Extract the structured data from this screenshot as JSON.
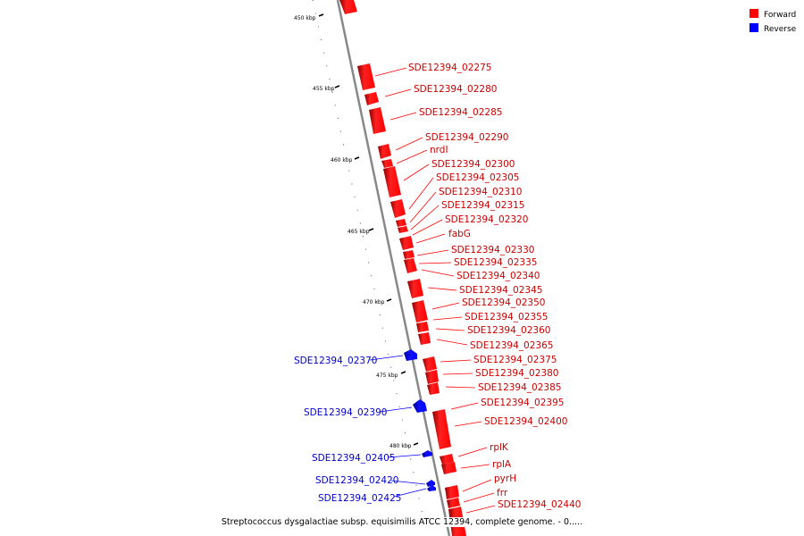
{
  "legend": {
    "forward": "Forward",
    "reverse": "Reverse"
  },
  "colors": {
    "forward": "#ff0000",
    "reverse": "#0000ff",
    "backbone": "#888888"
  },
  "caption": "Streptococcus dysgalactiae subsp. equisimilis ATCC 12394, complete genome. - 0.....",
  "ticks": [
    {
      "label": "450 kbp",
      "kbp": 450
    },
    {
      "label": "455 kbp",
      "kbp": 455
    },
    {
      "label": "460 kbp",
      "kbp": 460
    },
    {
      "label": "465 kbp",
      "kbp": 465
    },
    {
      "label": "470 kbp",
      "kbp": 470
    },
    {
      "label": "475 kbp",
      "kbp": 475
    },
    {
      "label": "480 kbp",
      "kbp": 480
    }
  ],
  "forward_labels": [
    "SDE12394_02275",
    "SDE12394_02280",
    "SDE12394_02285",
    "SDE12394_02290",
    "nrdI",
    "SDE12394_02300",
    "SDE12394_02305",
    "SDE12394_02310",
    "SDE12394_02315",
    "SDE12394_02320",
    "fabG",
    "SDE12394_02330",
    "SDE12394_02335",
    "SDE12394_02340",
    "SDE12394_02345",
    "SDE12394_02350",
    "SDE12394_02355",
    "SDE12394_02360",
    "SDE12394_02365",
    "SDE12394_02375",
    "SDE12394_02380",
    "SDE12394_02385",
    "SDE12394_02395",
    "SDE12394_02400",
    "rplK",
    "rplA",
    "pyrH",
    "frr",
    "SDE12394_02440"
  ],
  "reverse_labels": [
    "SDE12394_02370",
    "SDE12394_02390",
    "SDE12394_02405",
    "SDE12394_02420",
    "SDE12394_02425"
  ]
}
